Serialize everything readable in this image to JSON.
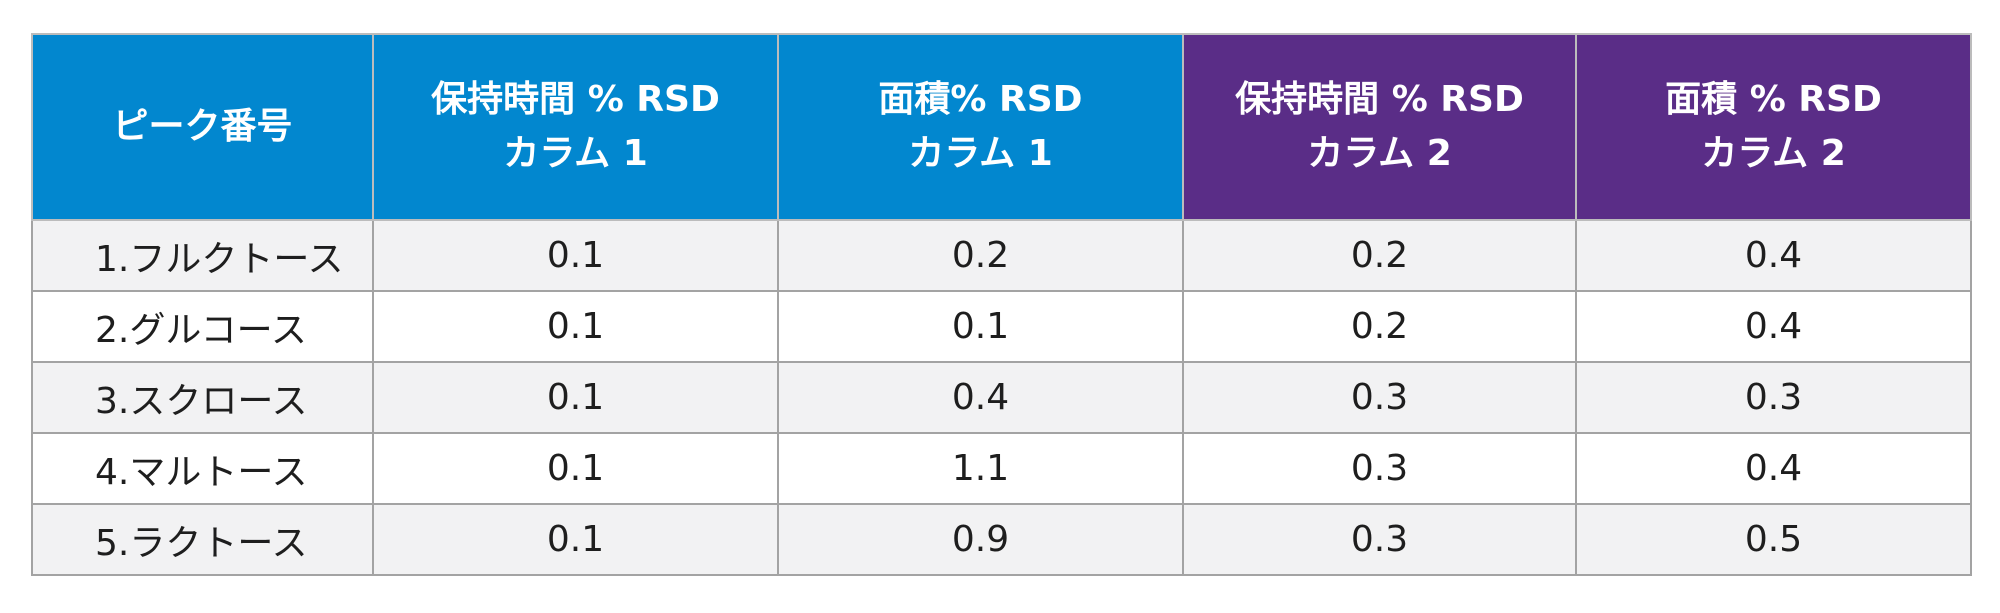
{
  "table": {
    "headers": [
      {
        "lines": [
          "ピーク番号"
        ],
        "color": "#0287cf"
      },
      {
        "lines": [
          "保持時間 % RSD",
          "カラム 1"
        ],
        "color": "#0287cf"
      },
      {
        "lines": [
          "面積% RSD",
          "カラム 1"
        ],
        "color": "#0287cf"
      },
      {
        "lines": [
          "保持時間 % RSD",
          "カラム 2"
        ],
        "color": "#5a2d87"
      },
      {
        "lines": [
          "面積 % RSD",
          "カラム 2"
        ],
        "color": "#5a2d87"
      }
    ],
    "rows": [
      {
        "peak": "1.フルクトース",
        "rt_rsd_col1": "0.1",
        "area_rsd_col1": "0.2",
        "rt_rsd_col2": "0.2",
        "area_rsd_col2": "0.4"
      },
      {
        "peak": "2.グルコース",
        "rt_rsd_col1": "0.1",
        "area_rsd_col1": "0.1",
        "rt_rsd_col2": "0.2",
        "area_rsd_col2": "0.4"
      },
      {
        "peak": "3.スクロース",
        "rt_rsd_col1": "0.1",
        "area_rsd_col1": "0.4",
        "rt_rsd_col2": "0.3",
        "area_rsd_col2": "0.3"
      },
      {
        "peak": "4.マルトース",
        "rt_rsd_col1": "0.1",
        "area_rsd_col1": "1.1",
        "rt_rsd_col2": "0.3",
        "area_rsd_col2": "0.4"
      },
      {
        "peak": "5.ラクトース",
        "rt_rsd_col1": "0.1",
        "area_rsd_col1": "0.9",
        "rt_rsd_col2": "0.3",
        "area_rsd_col2": "0.5"
      }
    ]
  }
}
